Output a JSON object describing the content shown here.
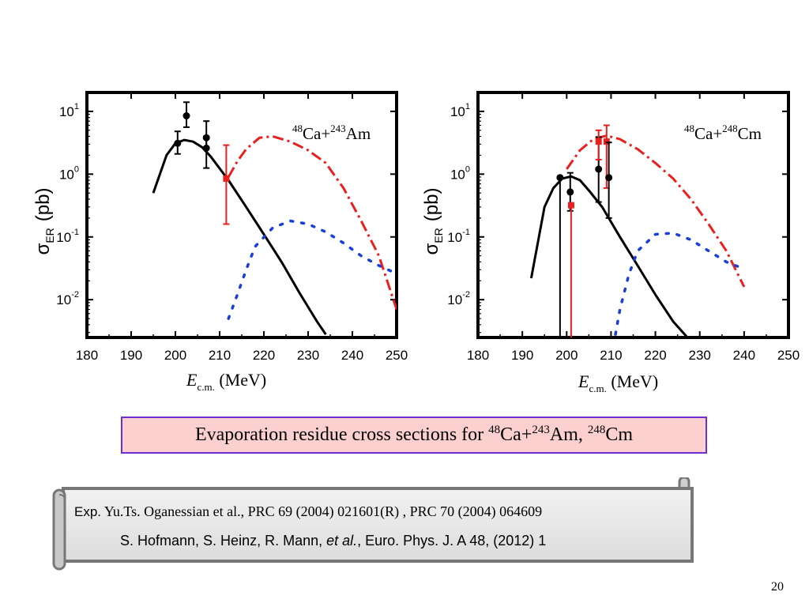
{
  "chart_data": [
    {
      "type": "line",
      "panel_label": {
        "proj_mass": "48",
        "proj": "Ca+",
        "targ_mass": "243",
        "targ": "Am"
      },
      "xlabel": {
        "main": "E",
        "sub": "c.m.",
        "unit": " (MeV)"
      },
      "ylabel": {
        "main": "σ",
        "sub": "ER",
        "unit": "(pb)"
      },
      "xlim": [
        180,
        250
      ],
      "xticks": [
        "180",
        "190",
        "200",
        "210",
        "220",
        "230",
        "240",
        "250"
      ],
      "ylim": [
        0.0025,
        20
      ],
      "yscale": "log",
      "yticks": [
        {
          "value": 0.01,
          "base": "10",
          "exp": "-2"
        },
        {
          "value": 0.1,
          "base": "10",
          "exp": "-1"
        },
        {
          "value": 1,
          "base": "10",
          "exp": "0"
        },
        {
          "value": 10,
          "base": "10",
          "exp": "1"
        }
      ],
      "series": [
        {
          "color": "#000000",
          "style": "solid",
          "x": [
            195,
            198,
            200,
            202,
            204,
            206,
            208,
            212,
            216,
            220,
            224,
            228,
            232,
            234
          ],
          "y": [
            0.5,
            2.0,
            3.1,
            3.5,
            3.3,
            2.7,
            1.9,
            0.8,
            0.3,
            0.11,
            0.04,
            0.013,
            0.0045,
            0.0028
          ]
        },
        {
          "color": "#e8201e",
          "style": "dashdot",
          "x": [
            212,
            214,
            216,
            219,
            222,
            226,
            230,
            234,
            238,
            242,
            246,
            250
          ],
          "y": [
            0.9,
            1.6,
            2.5,
            3.8,
            4.0,
            3.3,
            2.4,
            1.5,
            0.6,
            0.18,
            0.05,
            0.007
          ]
        },
        {
          "color": "#1a3fd6",
          "style": "dotted",
          "x": [
            212,
            214,
            216,
            218,
            222,
            226,
            230,
            234,
            238,
            242,
            246,
            250
          ],
          "y": [
            0.005,
            0.012,
            0.03,
            0.07,
            0.14,
            0.18,
            0.16,
            0.12,
            0.08,
            0.05,
            0.035,
            0.026
          ]
        }
      ],
      "points": [
        {
          "x": 200.5,
          "y": 3.1,
          "low": 2.1,
          "high": 4.8,
          "color": "#000000"
        },
        {
          "x": 202.5,
          "y": 8.5,
          "low": 5.6,
          "high": 14.0,
          "color": "#000000"
        },
        {
          "x": 207,
          "y": 2.6,
          "low": 1.25,
          "high": 4.0,
          "color": "#000000"
        },
        {
          "x": 207,
          "y": 3.8,
          "low": 2.6,
          "high": 7.0,
          "color": "#000000"
        },
        {
          "x": 211.5,
          "y": 0.85,
          "low": 0.16,
          "high": 2.9,
          "color": "#e8201e"
        }
      ]
    },
    {
      "type": "line",
      "panel_label": {
        "proj_mass": "48",
        "proj": "Ca+",
        "targ_mass": "248",
        "targ": "Cm"
      },
      "xlabel": {
        "main": "E",
        "sub": "c.m.",
        "unit": " (MeV)"
      },
      "ylabel": {
        "main": "σ",
        "sub": "ER",
        "unit": "(pb)"
      },
      "xlim": [
        180,
        250
      ],
      "xticks": [
        "180",
        "190",
        "200",
        "210",
        "220",
        "230",
        "240",
        "250"
      ],
      "ylim": [
        0.0025,
        20
      ],
      "yscale": "log",
      "yticks": [
        {
          "value": 0.01,
          "base": "10",
          "exp": "-2"
        },
        {
          "value": 0.1,
          "base": "10",
          "exp": "-1"
        },
        {
          "value": 1,
          "base": "10",
          "exp": "0"
        },
        {
          "value": 10,
          "base": "10",
          "exp": "1"
        }
      ],
      "series": [
        {
          "color": "#000000",
          "style": "solid",
          "x": [
            192,
            195,
            197,
            199,
            201,
            203,
            205,
            208,
            212,
            216,
            220,
            224,
            227
          ],
          "y": [
            0.022,
            0.3,
            0.6,
            0.85,
            0.92,
            0.8,
            0.55,
            0.3,
            0.1,
            0.035,
            0.012,
            0.0045,
            0.0026
          ]
        },
        {
          "color": "#e8201e",
          "style": "dashdot",
          "x": [
            200,
            203,
            206,
            209,
            212,
            216,
            220,
            224,
            228,
            232,
            236,
            240
          ],
          "y": [
            1.2,
            2.4,
            3.6,
            4.1,
            3.6,
            2.5,
            1.5,
            0.85,
            0.4,
            0.16,
            0.06,
            0.016
          ]
        },
        {
          "color": "#1a3fd6",
          "style": "dotted",
          "x": [
            211,
            212,
            214,
            216,
            220,
            224,
            228,
            232,
            236,
            239
          ],
          "y": [
            0.0028,
            0.007,
            0.025,
            0.06,
            0.11,
            0.115,
            0.09,
            0.06,
            0.04,
            0.033
          ]
        }
      ],
      "points": [
        {
          "x": 198.5,
          "y": 0.88,
          "low": 0.0025,
          "high": 0.88,
          "color": "#000000"
        },
        {
          "x": 200.8,
          "y": 0.52,
          "low": 0.26,
          "high": 1.05,
          "color": "#000000"
        },
        {
          "x": 201,
          "y": 0.32,
          "low": 0.0025,
          "high": 0.32,
          "color": "#e8201e"
        },
        {
          "x": 207.2,
          "y": 1.2,
          "low": 0.36,
          "high": 3.9,
          "color": "#000000"
        },
        {
          "x": 207.2,
          "y": 3.3,
          "low": 1.7,
          "high": 5.0,
          "color": "#e8201e"
        },
        {
          "x": 209,
          "y": 3.3,
          "low": 0.6,
          "high": 6.0,
          "color": "#e8201e"
        },
        {
          "x": 209.5,
          "y": 0.88,
          "low": 0.2,
          "high": 3.2,
          "color": "#000000"
        }
      ]
    }
  ],
  "caption": {
    "text": "Evaporation residue cross sections for ",
    "m1": "48",
    "t1": "Ca+",
    "m2": "243",
    "t2": "Am, ",
    "m3": "248",
    "t3": "Cm"
  },
  "refs": {
    "exp_label": "Exp.",
    "line1": " Yu.Ts. Oganessian  et al., PRC 69 (2004) 021601(R) , PRC 70 (2004) 064609",
    "line2_a": "S. Hofmann, S. Heinz, R. Mann, ",
    "line2_etal": "et al.",
    "line2_b": ", Euro. Phys. J. A 48, (2012) 1"
  },
  "page_number": "20"
}
